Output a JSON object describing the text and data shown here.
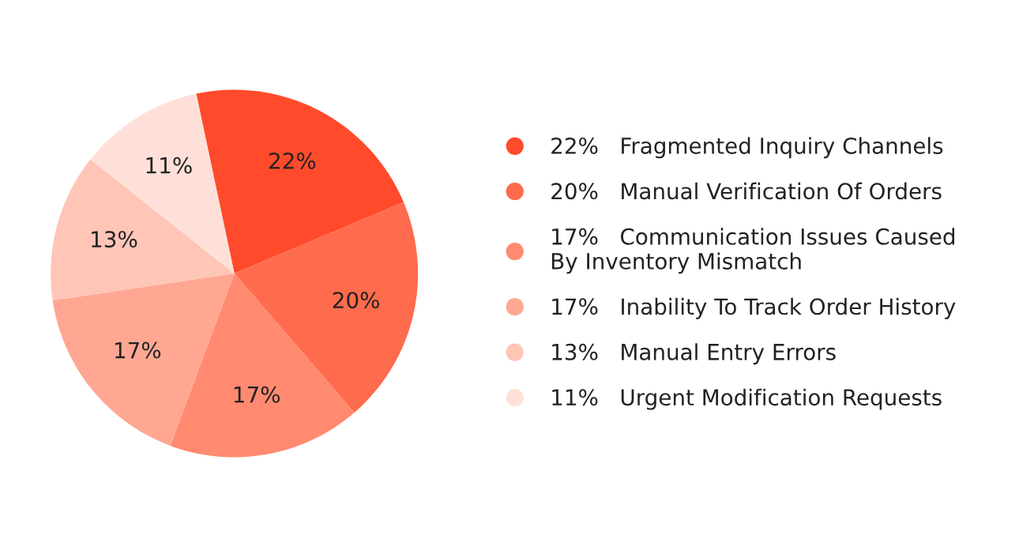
{
  "chart_data": {
    "type": "pie",
    "categories": [
      "Fragmented Inquiry Channels",
      "Manual Verification Of Orders",
      "Communication Issues Caused\nBy Inventory Mismatch",
      "Inability To Track Order History",
      "Manual Entry Errors",
      "Urgent Modification Requests"
    ],
    "values": [
      22,
      20,
      17,
      17,
      13,
      11
    ],
    "value_labels": [
      "22%",
      "20%",
      "17%",
      "17%",
      "13%",
      "11%"
    ],
    "colors": [
      "#ff4b2b",
      "#ff6b4d",
      "#ff8a70",
      "#ffa792",
      "#ffc5b7",
      "#ffe0d8"
    ],
    "legend": "right"
  }
}
